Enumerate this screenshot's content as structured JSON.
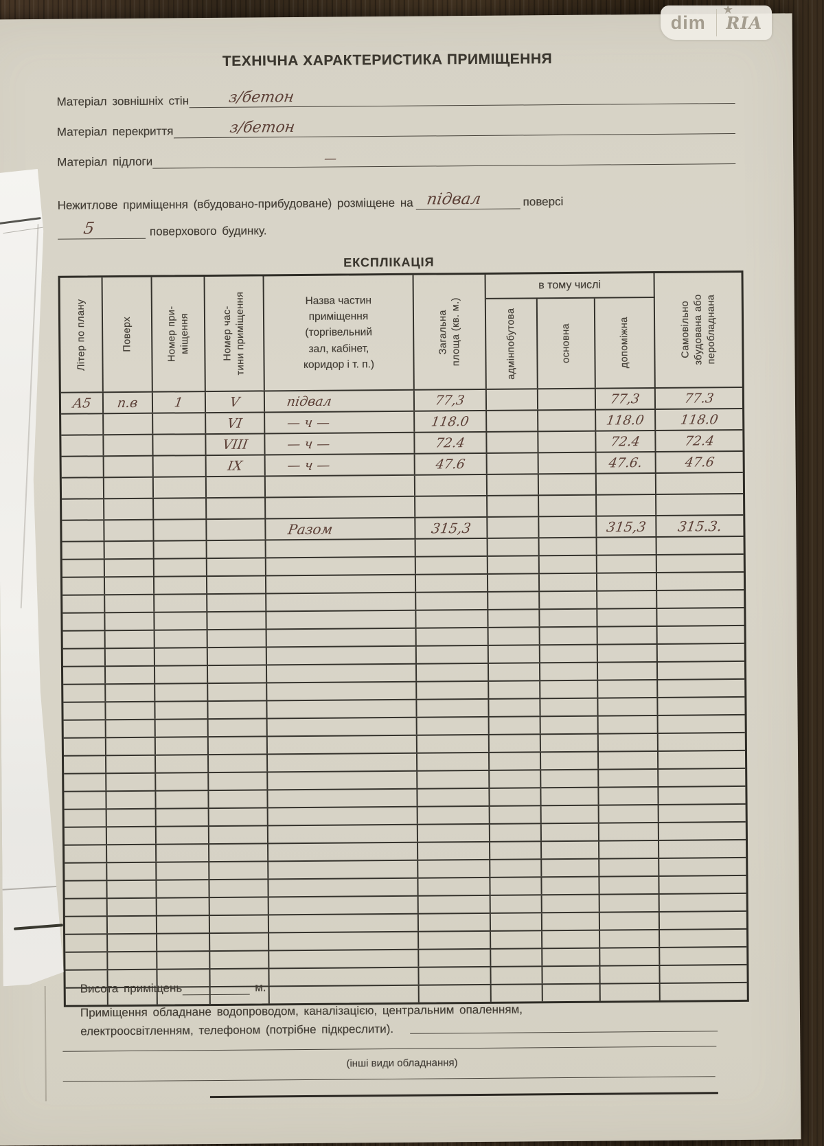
{
  "watermark": {
    "left": "dim",
    "right": "RIA",
    "star": "★"
  },
  "page": {
    "title": "ТЕХНІЧНА ХАРАКТЕРИСТИКА ПРИМІЩЕННЯ"
  },
  "fields": [
    {
      "label": "Матеріал зовнішніх стін",
      "value": "з/бетон"
    },
    {
      "label": "Матеріал перекриття",
      "value": "з/бетон"
    },
    {
      "label": "Матеріал підлоги",
      "value": "—"
    }
  ],
  "placement": {
    "line1_prefix": "Нежитлове приміщення (вбудовано-прибудоване) розміщене на",
    "line1_value": "підвал",
    "line1_suffix": "поверсі",
    "line2_value": "5",
    "line2_suffix": "поверхового будинку."
  },
  "explication": {
    "title": "ЕКСПЛІКАЦІЯ",
    "group_header": "в тому числі",
    "col_liter": "Літер по плану",
    "col_poverh": "Поверх",
    "col_nomer_prym": "Номер при-\nміщення",
    "col_nomer_chast": "Номер час-\nтини приміщення",
    "col_nazva": "Назва частин\nприміщення\n(торгівельний\nзал, кабінет,\nкоридор і т. п.)",
    "col_zagalna": "Загальна\nплоща (кв. м.)",
    "col_admin": "адмінпобутова",
    "col_osnovna": "основна",
    "col_dopomizhna": "допоміжна",
    "col_samovilno": "Самовільно\nзбудована або\nперобладнана",
    "rows": [
      {
        "liter": "А5",
        "poverh": "п.в",
        "nomer_prym": "1",
        "nomer_chast": "V",
        "nazva": "підвал",
        "zagalna": "77,3",
        "admin": "",
        "osnovna": "",
        "dopomizhna": "77,3",
        "samovilno": "77.3"
      },
      {
        "liter": "",
        "poverh": "",
        "nomer_prym": "",
        "nomer_chast": "VI",
        "nazva": "— ч —",
        "zagalna": "118.0",
        "admin": "",
        "osnovna": "",
        "dopomizhna": "118.0",
        "samovilno": "118.0"
      },
      {
        "liter": "",
        "poverh": "",
        "nomer_prym": "",
        "nomer_chast": "VIII",
        "nazva": "— ч —",
        "zagalna": "72.4",
        "admin": "",
        "osnovna": "",
        "dopomizhna": "72.4",
        "samovilno": "72.4"
      },
      {
        "liter": "",
        "poverh": "",
        "nomer_prym": "",
        "nomer_chast": "IX",
        "nazva": "— ч —",
        "zagalna": "47.6",
        "admin": "",
        "osnovna": "",
        "dopomizhna": "47.6.",
        "samovilno": "47.6"
      }
    ],
    "empty_rows_before_total": 2,
    "total_row": {
      "nazva": "Разом",
      "zagalna": "315,3",
      "dopomizhna": "315,3",
      "samovilno": "315.3."
    },
    "empty_rows_after_total": 26
  },
  "footer": {
    "height_label": "Висота приміщень",
    "height_unit": "м.",
    "equipment_line1": "Приміщення обладнане водопроводом, каналізацією, центральним опаленням,",
    "equipment_line2": "електроосвітленням, телефоном (потрібне підкреслити).",
    "other_equipment_caption": "(інші види обладнання)"
  },
  "colors": {
    "print_ink": "#423d35",
    "hand_ink": "#5d4138",
    "paper": "#d9d5c8",
    "wood": "#3a2d1f"
  }
}
